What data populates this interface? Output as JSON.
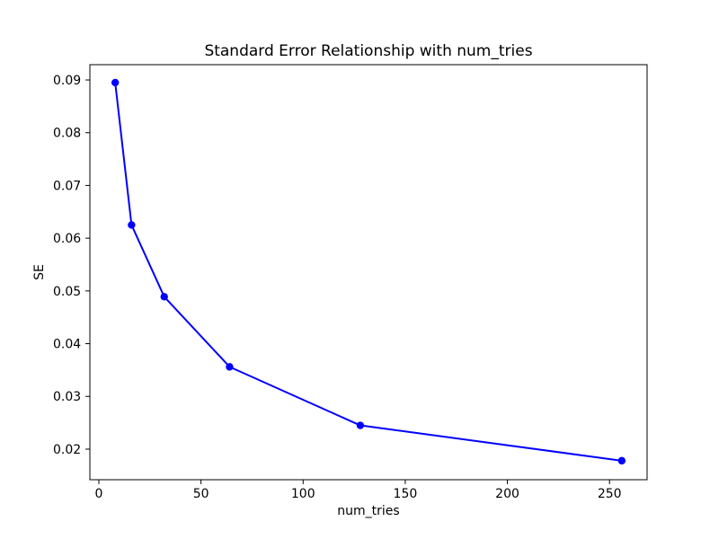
{
  "window": {
    "background": "#ffffff"
  },
  "chart_data": {
    "type": "line",
    "title": "Standard Error Relationship with num_tries",
    "xlabel": "num_tries",
    "ylabel": "SE",
    "x": [
      8,
      16,
      32,
      64,
      128,
      256
    ],
    "series": [
      {
        "name": "SE",
        "values": [
          0.0895,
          0.0625,
          0.0489,
          0.0356,
          0.0245,
          0.0178
        ],
        "color": "#0000ff",
        "marker": "circle",
        "linestyle": "solid"
      }
    ],
    "xlim": [
      -4.4,
      268.4
    ],
    "ylim": [
      0.0142,
      0.0929
    ],
    "xticks": {
      "values": [
        0,
        50,
        100,
        150,
        200,
        250
      ],
      "labels": [
        "0",
        "50",
        "100",
        "150",
        "200",
        "250"
      ]
    },
    "yticks": {
      "values": [
        0.02,
        0.03,
        0.04,
        0.05,
        0.06,
        0.07,
        0.08,
        0.09
      ],
      "labels": [
        "0.02",
        "0.03",
        "0.04",
        "0.05",
        "0.06",
        "0.07",
        "0.08",
        "0.09"
      ]
    },
    "grid": false,
    "legend_position": "none",
    "axis_color": "#000000",
    "text_color": "#000000",
    "plot_background": "#ffffff"
  }
}
